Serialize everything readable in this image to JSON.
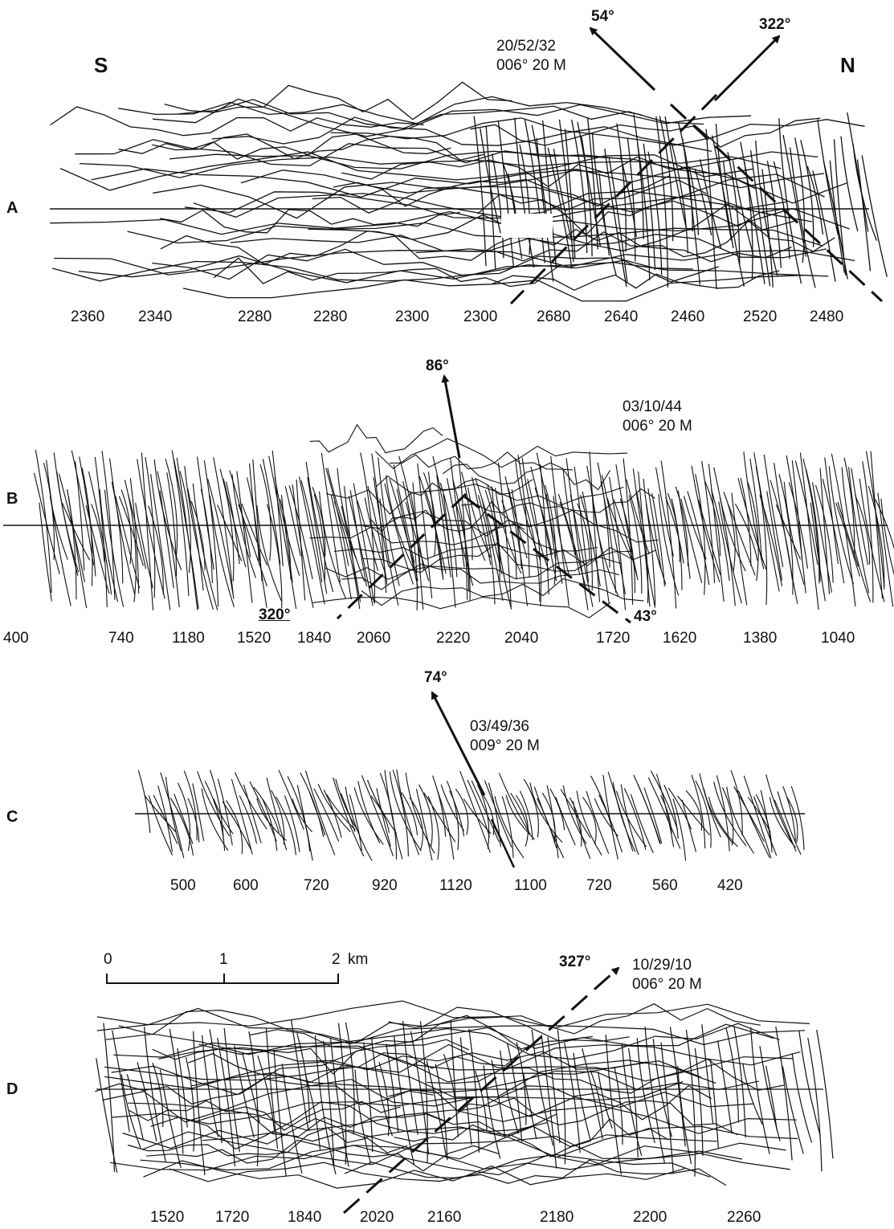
{
  "orientation": {
    "left": "S",
    "right": "N"
  },
  "panels": [
    {
      "label": "A",
      "note_line1": "20/52/32",
      "note_line2": "006° 20 M",
      "angles": [
        "54°",
        "322°"
      ],
      "depths": [
        "2360",
        "2340",
        "2280",
        "2280",
        "2300",
        "2300",
        "2680",
        "2640",
        "2460",
        "2520",
        "2480"
      ]
    },
    {
      "label": "B",
      "note_line1": "03/10/44",
      "note_line2": "006° 20 M",
      "angles": [
        "86°",
        "320°",
        "43°"
      ],
      "depths": [
        "400",
        "740",
        "1180",
        "1520",
        "1840",
        "2060",
        "2220",
        "2040",
        "1720",
        "1620",
        "1380",
        "1040"
      ]
    },
    {
      "label": "C",
      "note_line1": "03/49/36",
      "note_line2": "009° 20 M",
      "angles": [
        "74°"
      ],
      "depths": [
        "500",
        "600",
        "720",
        "920",
        "1120",
        "1100",
        "720",
        "560",
        "420"
      ]
    },
    {
      "label": "D",
      "note_line1": "10/29/10",
      "note_line2": "006° 20 M",
      "angles": [
        "327°"
      ],
      "depths": [
        "1520",
        "1720",
        "1840",
        "2020",
        "2160",
        "2180",
        "2200",
        "2260"
      ]
    }
  ],
  "scale_bar": {
    "ticks": [
      "0",
      "1",
      "2"
    ],
    "unit": "km"
  }
}
